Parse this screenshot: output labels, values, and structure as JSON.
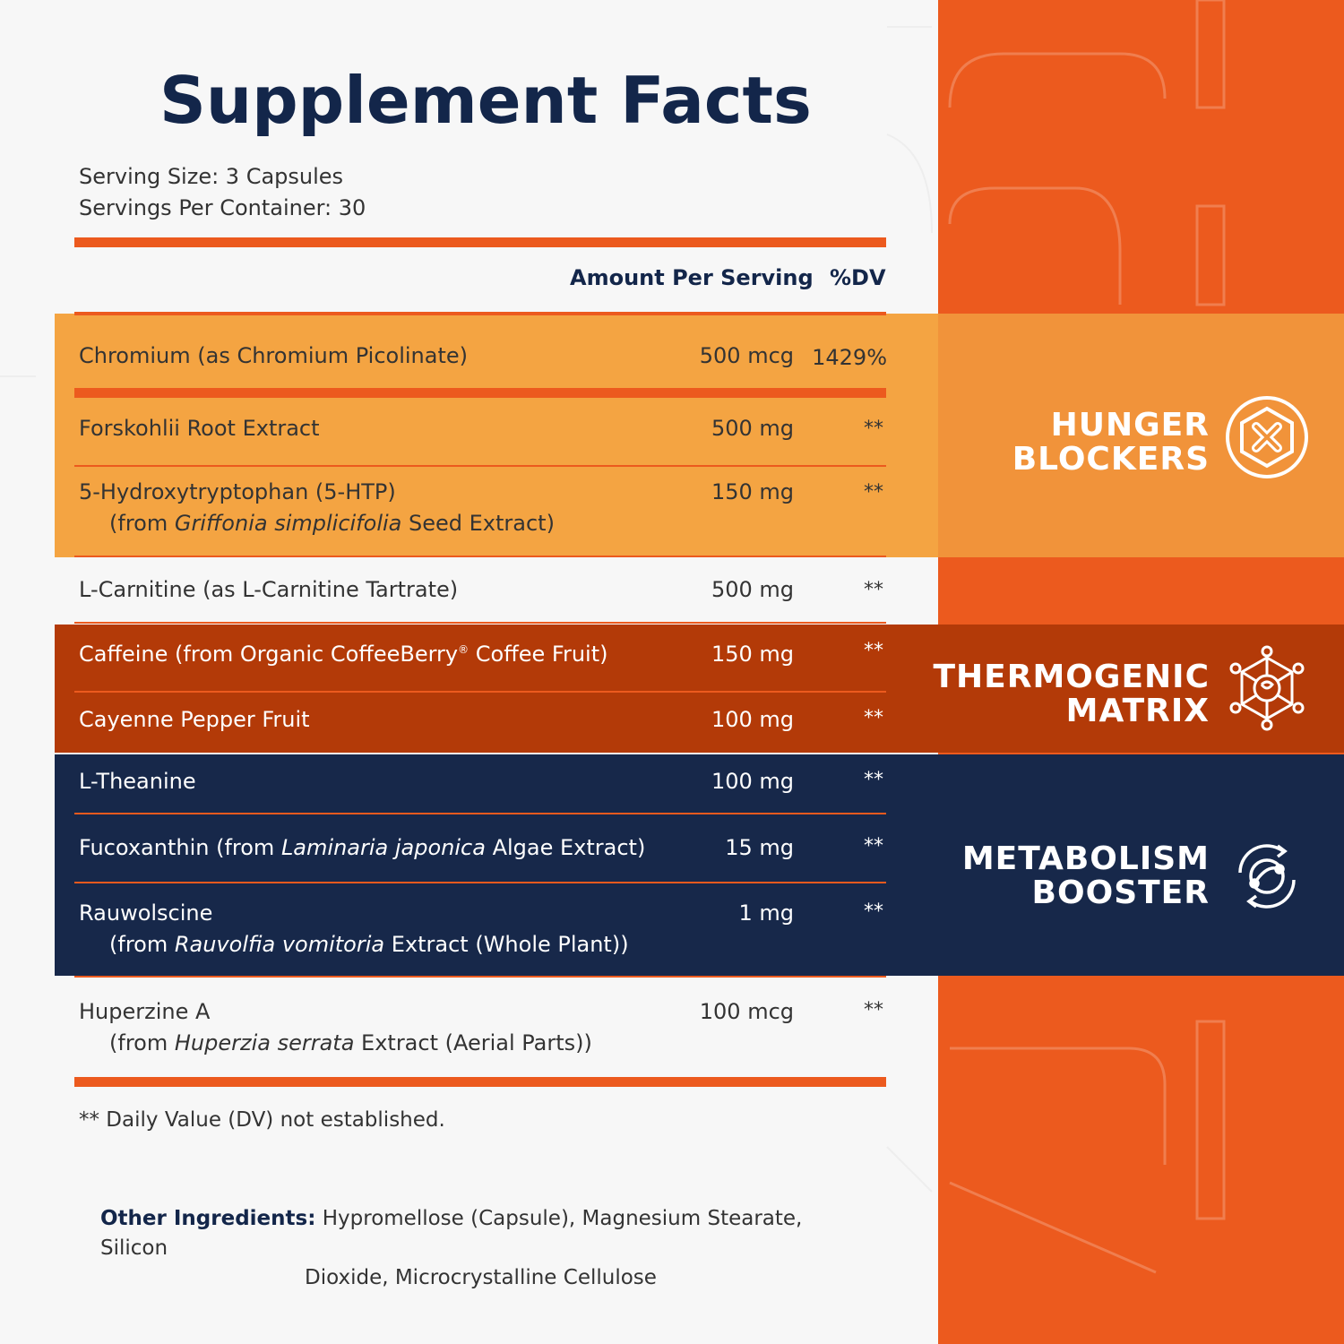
{
  "title": "Supplement Facts",
  "serving_size": "Serving Size: 3 Capsules",
  "servings_per_container": "Servings Per Container: 30",
  "header": {
    "amount": "Amount Per Serving",
    "dv": "%DV"
  },
  "rows": [
    {
      "name": "Chromium (as Chromium Picolinate)",
      "amount": "500 mcg",
      "dv": "1429%"
    },
    {
      "name": "Forskohlii Root Extract",
      "amount": "500 mg",
      "dv": "**"
    },
    {
      "name": "5-Hydroxytryptophan (5-HTP)",
      "sub_pre": "(from ",
      "sub_italic": "Griffonia simplicifolia",
      "sub_post": " Seed Extract)",
      "amount": "150 mg",
      "dv": "**"
    },
    {
      "name": "L-Carnitine (as L-Carnitine Tartrate)",
      "amount": "500 mg",
      "dv": "**"
    },
    {
      "name_pre": "Caffeine (from Organic CoffeeBerry",
      "name_sup": "®",
      "name_post": " Coffee Fruit)",
      "amount": "150 mg",
      "dv": "**"
    },
    {
      "name": "Cayenne Pepper Fruit",
      "amount": "100 mg",
      "dv": "**"
    },
    {
      "name": "L-Theanine",
      "amount": "100 mg",
      "dv": "**"
    },
    {
      "name_pre": "Fucoxanthin (from ",
      "name_italic": "Laminaria japonica",
      "name_post": " Algae Extract)",
      "amount": "15 mg",
      "dv": "**"
    },
    {
      "name": "Rauwolscine",
      "sub_pre": "(from ",
      "sub_italic": "Rauvolfia vomitoria",
      "sub_post": " Extract (Whole Plant))",
      "amount": "1 mg",
      "dv": "**"
    },
    {
      "name": "Huperzine A",
      "sub_pre": "(from ",
      "sub_italic": "Huperzia serrata",
      "sub_post": " Extract (Aerial Parts))",
      "amount": "100 mcg",
      "dv": "**"
    }
  ],
  "categories": [
    {
      "line1": "HUNGER",
      "line2": "BLOCKERS",
      "icon": "hexagon-x-icon"
    },
    {
      "line1": "THERMOGENIC",
      "line2": "MATRIX",
      "icon": "molecule-icon"
    },
    {
      "line1": "METABOLISM",
      "line2": "BOOSTER",
      "icon": "cycle-icon"
    }
  ],
  "footnote": "** Daily Value (DV) not established.",
  "other_ingredients": {
    "label": "Other Ingredients:",
    "line1": " Hypromellose (Capsule), Magnesium Stearate, Silicon",
    "line2": "Dioxide, Microcrystalline Cellulose"
  },
  "colors": {
    "orange": "#ec5a1e",
    "yellow": "#f4a442",
    "red": "#b33a08",
    "navy": "#17284a"
  }
}
